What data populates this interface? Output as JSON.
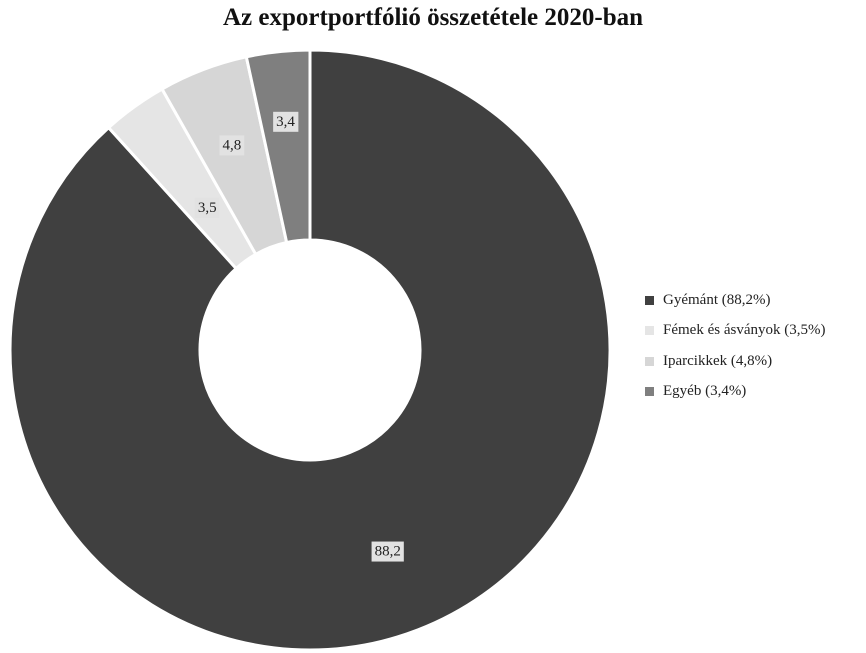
{
  "chart_data": {
    "type": "pie",
    "title": "Az exportportfólió összetétele 2020-ban",
    "donut": true,
    "categories": [
      "Gyémánt",
      "Fémek és ásványok",
      "Iparcikkek",
      "Egyéb"
    ],
    "values": [
      88.2,
      3.5,
      4.8,
      3.4
    ],
    "data_labels": [
      "88,2",
      "3,5",
      "4,8",
      "3,4"
    ],
    "colors": [
      "#404040",
      "#e5e5e5",
      "#d6d6d6",
      "#7f7f7f"
    ],
    "legend": {
      "placement": "right",
      "entries": [
        "Gyémánt (88,2%)",
        "Fémek és ásványok (3,5%)",
        "Iparcikkek (4,8%)",
        "Egyéb (3,4%)"
      ]
    }
  }
}
